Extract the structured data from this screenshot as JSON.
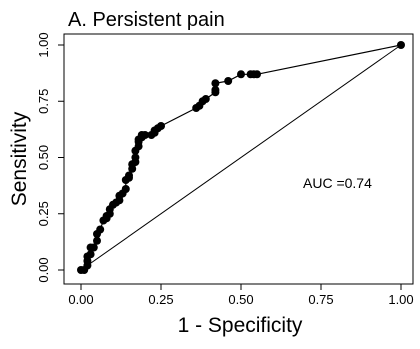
{
  "chart_data": {
    "type": "line",
    "title": "A. Persistent pain",
    "xlabel": "1 - Specificity",
    "ylabel": "Sensitivity",
    "xlim": [
      0,
      1
    ],
    "ylim": [
      0,
      1
    ],
    "x_ticks": [
      "0.00",
      "0.25",
      "0.50",
      "0.75",
      "1.00"
    ],
    "y_ticks": [
      "0.00",
      "0.25",
      "0.50",
      "0.75",
      "1.00"
    ],
    "annotation": "AUC =0.74",
    "grid": false,
    "reference_line": {
      "x": [
        0,
        1
      ],
      "y": [
        0,
        1
      ]
    },
    "series": [
      {
        "x": [
          0.0,
          0.01,
          0.02,
          0.02,
          0.02,
          0.03,
          0.03,
          0.04,
          0.05,
          0.05,
          0.06,
          0.07,
          0.08,
          0.08,
          0.09,
          0.09,
          0.1,
          0.11,
          0.12,
          0.12,
          0.13,
          0.14,
          0.14,
          0.15,
          0.15,
          0.16,
          0.16,
          0.17,
          0.17,
          0.17,
          0.18,
          0.18,
          0.18,
          0.19,
          0.19,
          0.2,
          0.22,
          0.23,
          0.23,
          0.24,
          0.25,
          0.36,
          0.37,
          0.38,
          0.39,
          0.42,
          0.42,
          0.42,
          0.46,
          0.5,
          0.53,
          0.54,
          0.55,
          1.0
        ],
        "y": [
          0.0,
          0.0,
          0.02,
          0.04,
          0.06,
          0.07,
          0.1,
          0.1,
          0.13,
          0.16,
          0.18,
          0.22,
          0.23,
          0.24,
          0.25,
          0.27,
          0.29,
          0.3,
          0.31,
          0.33,
          0.34,
          0.36,
          0.4,
          0.41,
          0.42,
          0.45,
          0.47,
          0.48,
          0.5,
          0.53,
          0.55,
          0.57,
          0.58,
          0.59,
          0.6,
          0.6,
          0.6,
          0.61,
          0.62,
          0.63,
          0.64,
          0.72,
          0.73,
          0.75,
          0.76,
          0.79,
          0.8,
          0.83,
          0.84,
          0.87,
          0.87,
          0.87,
          0.87,
          1.0
        ]
      }
    ]
  }
}
